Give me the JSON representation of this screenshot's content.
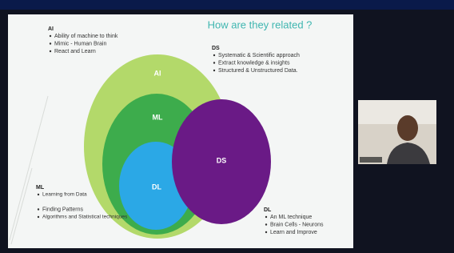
{
  "slide": {
    "title": "How are they related ?",
    "circles": [
      {
        "label": "AI"
      },
      {
        "label": "ML"
      },
      {
        "label": "DL"
      },
      {
        "label": "DS"
      }
    ],
    "notes": [
      {
        "heading": "AI",
        "items": [
          "Ability of machine to think",
          "Mimic - Human Brain",
          "React and Learn"
        ]
      },
      {
        "heading": "DS",
        "items": [
          "Systematic & Scientific approach",
          "Extract knowledge & insights",
          "Structured & Unstructured Data."
        ]
      },
      {
        "heading": "ML",
        "items": [
          "Learning from Data",
          "Finding Patterns",
          "Algorithms and Statistical techniques"
        ]
      },
      {
        "heading": "DL",
        "items": [
          "An ML technique",
          "Brain Cells - Neurons",
          "Learn and Improve"
        ]
      }
    ]
  }
}
